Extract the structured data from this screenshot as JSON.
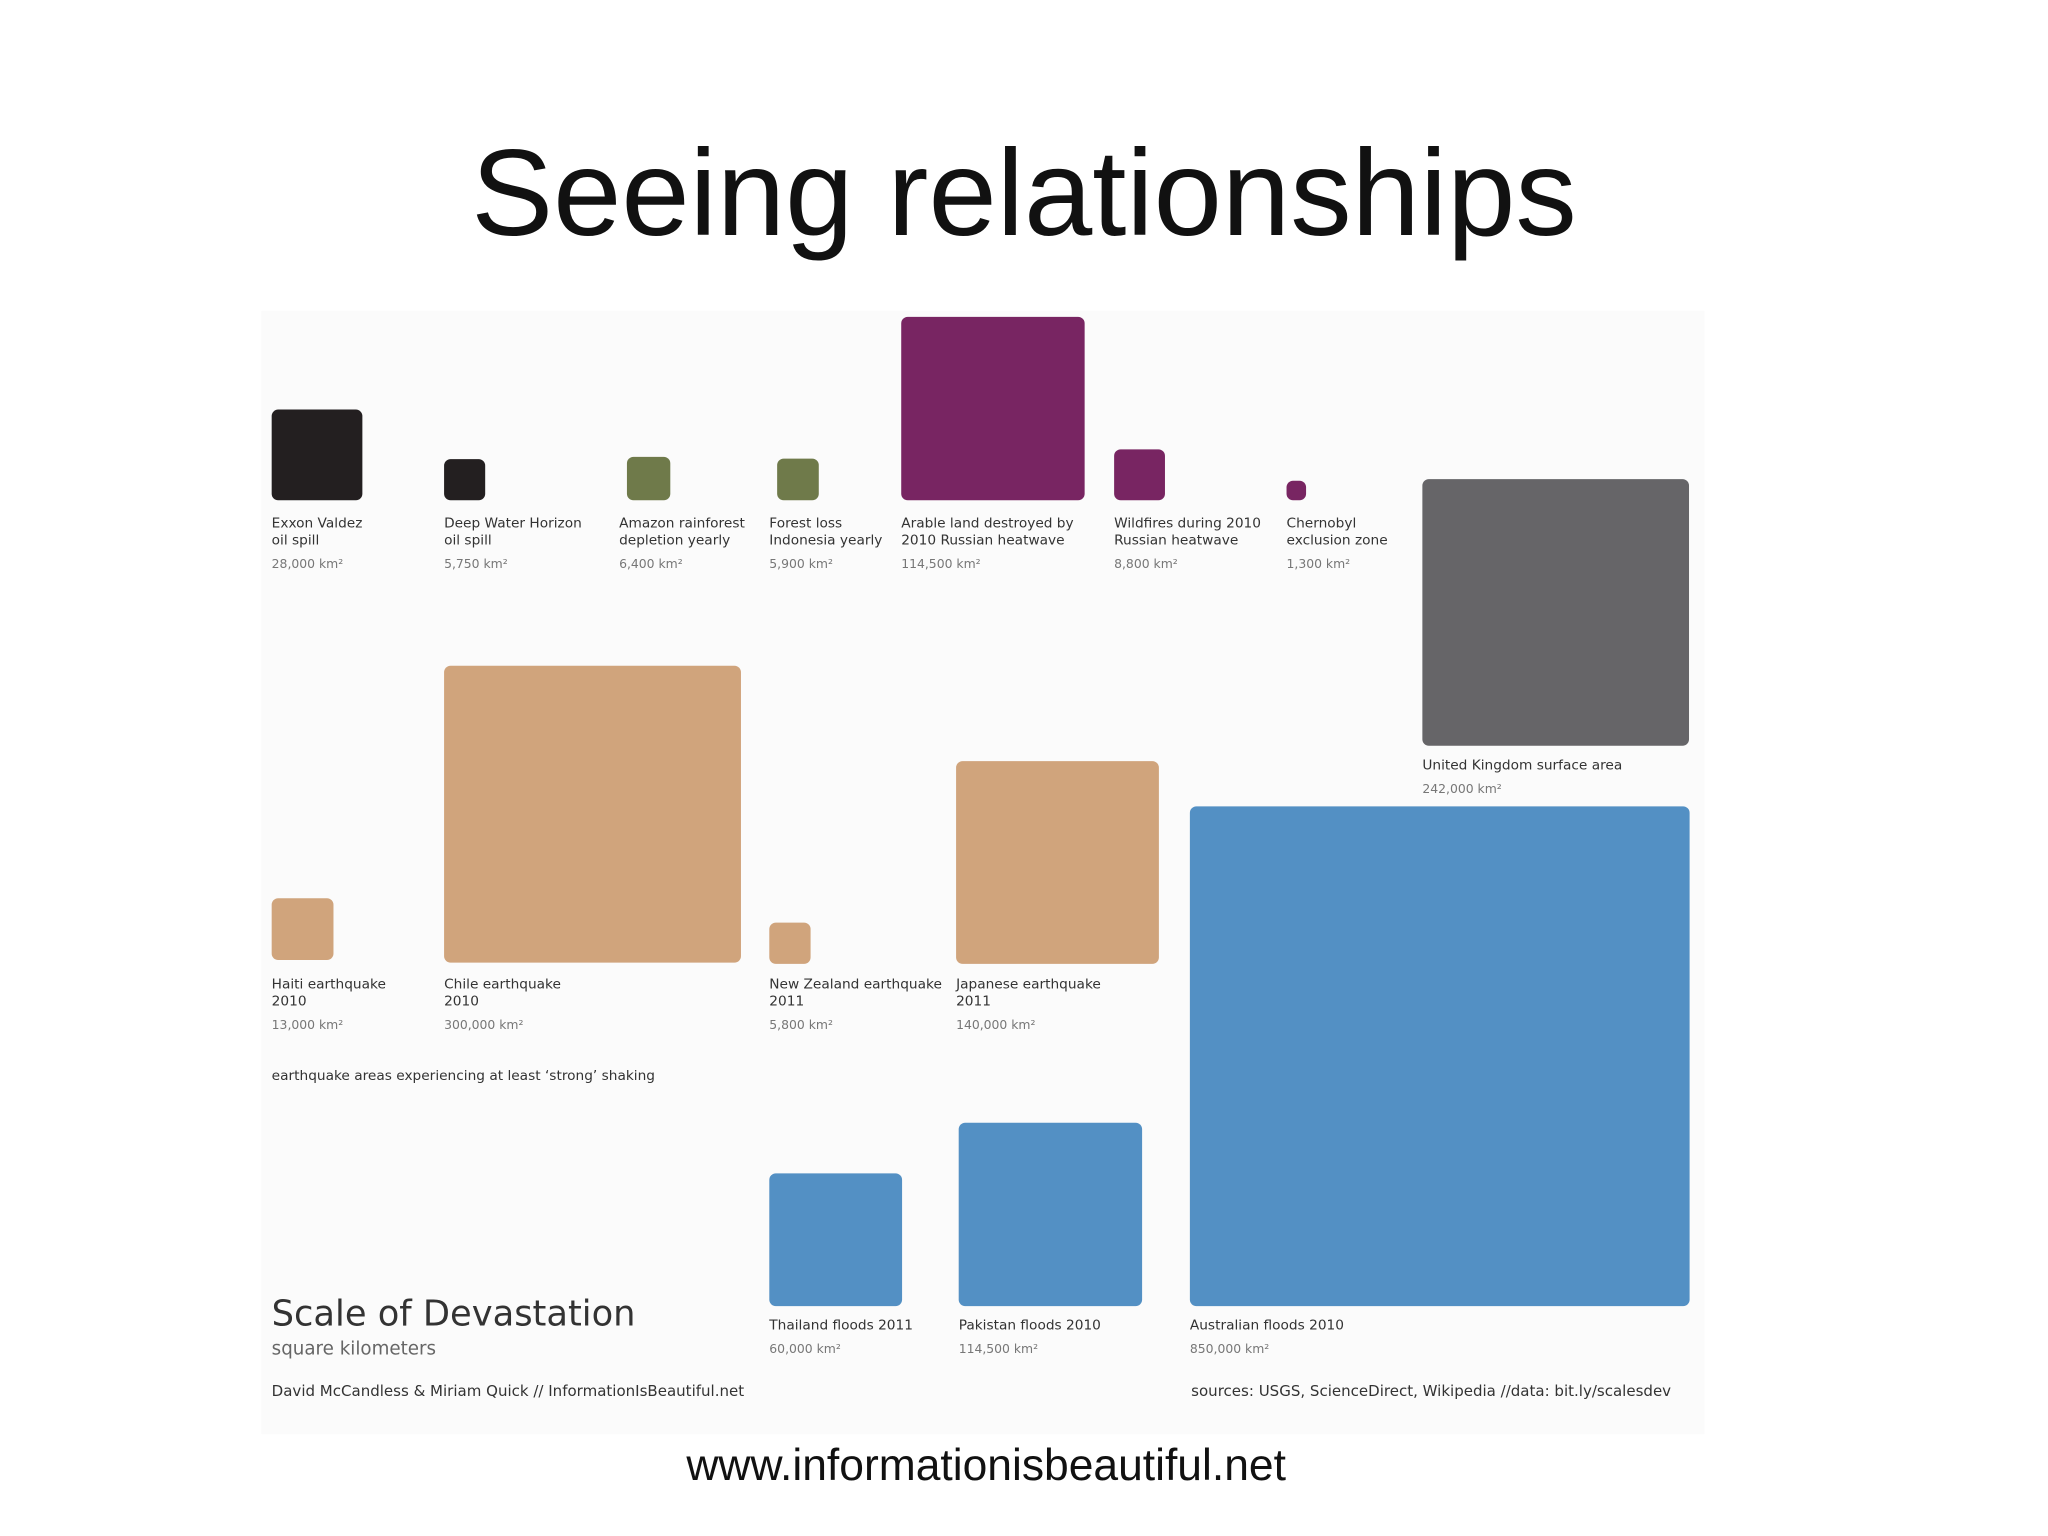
{
  "title": "Seeing relationships",
  "infographic": {
    "items": [
      {
        "label": [
          "Exxon Valdez",
          "oil spill"
        ],
        "value": 28000,
        "value_label": "28,000 km²",
        "color": "#231f20"
      },
      {
        "label": [
          "Deep Water Horizon",
          "oil spill"
        ],
        "value": 5750,
        "value_label": "5,750 km²",
        "color": "#231f20"
      },
      {
        "label": [
          "Amazon rainforest",
          "depletion yearly"
        ],
        "value": 6400,
        "value_label": "6,400 km²",
        "color": "#6f7a4a"
      },
      {
        "label": [
          "Forest loss",
          "Indonesia yearly"
        ],
        "value": 5900,
        "value_label": "5,900 km²",
        "color": "#6f7a4a"
      },
      {
        "label": [
          "Arable land destroyed by",
          "2010 Russian heatwave"
        ],
        "value": 114500,
        "value_label": "114,500 km²",
        "color": "#782562"
      },
      {
        "label": [
          "Wildfires during 2010",
          "Russian heatwave"
        ],
        "value": 8800,
        "value_label": "8,800 km²",
        "color": "#782562"
      },
      {
        "label": [
          "Chernobyl",
          "exclusion zone"
        ],
        "value": 1300,
        "value_label": "1,300 km²",
        "color": "#782562"
      },
      {
        "label": [
          "United Kingdom surface area"
        ],
        "value": 242000,
        "value_label": "242,000 km²",
        "color": "#666568"
      },
      {
        "label": [
          "Haiti earthquake",
          "2010"
        ],
        "value": 13000,
        "value_label": "13,000 km²",
        "color": "#d0a47c"
      },
      {
        "label": [
          "Chile earthquake",
          "2010"
        ],
        "value": 300000,
        "value_label": "300,000 km²",
        "color": "#d0a47c"
      },
      {
        "label": [
          "New Zealand earthquake",
          "2011"
        ],
        "value": 5800,
        "value_label": "5,800 km²",
        "color": "#d0a47c"
      },
      {
        "label": [
          "Japanese earthquake",
          "2011"
        ],
        "value": 140000,
        "value_label": "140,000 km²",
        "color": "#d0a47c"
      },
      {
        "label": [
          "Thailand floods 2011"
        ],
        "value": 60000,
        "value_label": "60,000 km²",
        "color": "#5390c4"
      },
      {
        "label": [
          "Pakistan floods 2010"
        ],
        "value": 114500,
        "value_label": "114,500 km²",
        "color": "#5390c4"
      },
      {
        "label": [
          "Australian floods 2010"
        ],
        "value": 850000,
        "value_label": "850,000 km²",
        "color": "#5390c4"
      }
    ],
    "note": "earthquake areas experiencing at least ‘strong’ shaking",
    "heading": "Scale of Devastation",
    "subheading": "square kilometers",
    "credit": "David McCandless & Miriam Quick // InformationIsBeautiful.net",
    "sources": "sources: USGS, ScienceDirect, Wikipedia //data: bit.ly/scalesdev"
  },
  "footer": "www.informationisbeautiful.net"
}
